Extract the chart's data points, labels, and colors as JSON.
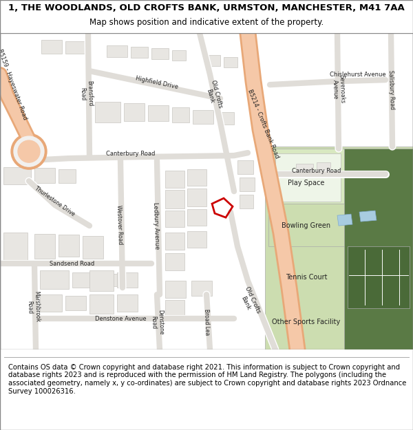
{
  "title": "1, THE WOODLANDS, OLD CROFTS BANK, URMSTON, MANCHESTER, M41 7AA",
  "subtitle": "Map shows position and indicative extent of the property.",
  "footer": "Contains OS data © Crown copyright and database right 2021. This information is subject to Crown copyright and database rights 2023 and is reproduced with the permission of HM Land Registry. The polygons (including the associated geometry, namely x, y co-ordinates) are subject to Crown copyright and database rights 2023 Ordnance Survey 100026316.",
  "map_bg": "#f2f0ee",
  "road_white": "#ffffff",
  "road_gray": "#e0ddd8",
  "major_road_fill": "#f5c8a8",
  "major_road_edge": "#e8a878",
  "building_fill": "#e8e6e2",
  "building_edge": "#c8c6c2",
  "green_light": "#ccddb0",
  "green_mid": "#b8cc98",
  "green_dark": "#5a7a45",
  "water_fill": "#a8cce0",
  "water_edge": "#80aacc",
  "property_color": "#cc0000",
  "label_color": "#222222",
  "title_fontsize": 9.5,
  "subtitle_fontsize": 8.5,
  "footer_fontsize": 7.2,
  "road_label_size": 6.0,
  "area_label_size": 7.0
}
